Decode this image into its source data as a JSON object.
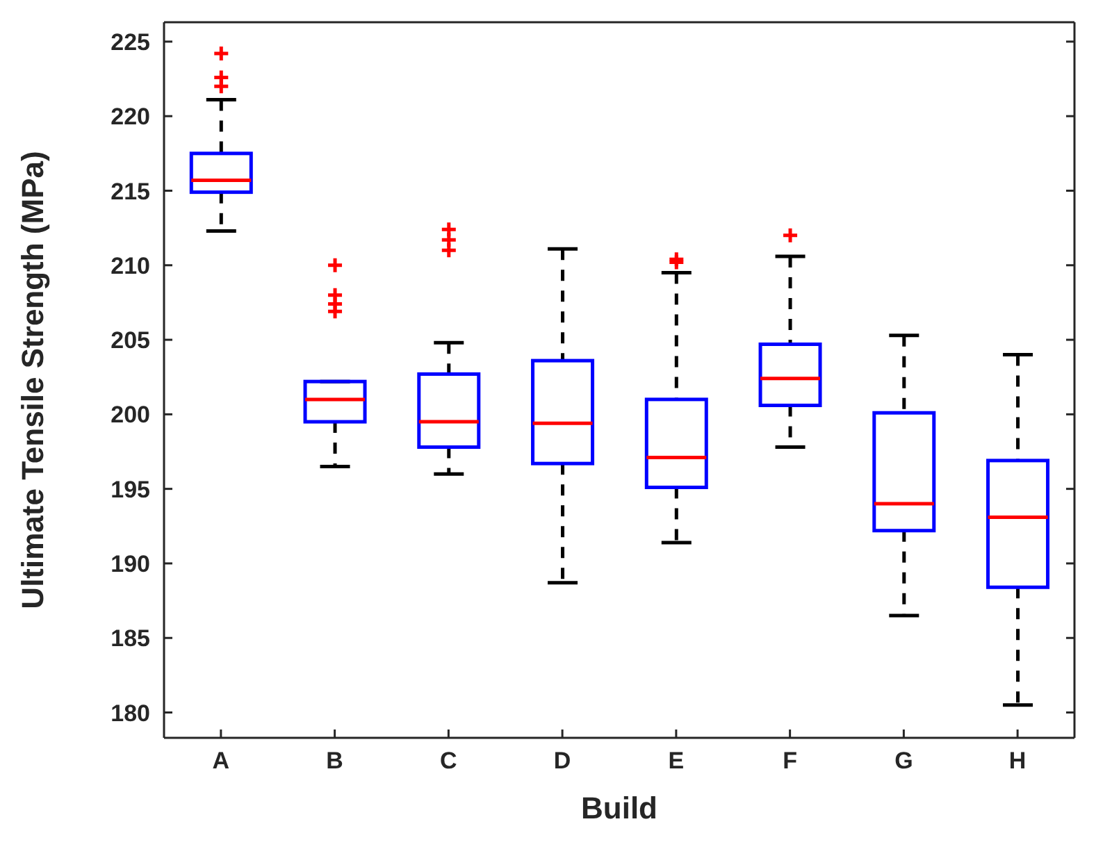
{
  "chart_data": {
    "type": "box",
    "xlabel": "Build",
    "ylabel": "Ultimate Tensile Strength (MPa)",
    "categories": [
      "A",
      "B",
      "C",
      "D",
      "E",
      "F",
      "G",
      "H"
    ],
    "boxes": [
      {
        "low": 212.3,
        "q1": 214.9,
        "median": 215.7,
        "q3": 217.5,
        "high": 221.1,
        "outliers": [
          224.2,
          222.6,
          222.0
        ]
      },
      {
        "low": 196.5,
        "q1": 199.5,
        "median": 201.0,
        "q3": 202.2,
        "high": 202.2,
        "outliers": [
          210.0,
          208.0,
          207.4,
          206.9
        ]
      },
      {
        "low": 196.0,
        "q1": 197.8,
        "median": 199.5,
        "q3": 202.7,
        "high": 204.8,
        "outliers": [
          212.4,
          211.7,
          211.0
        ]
      },
      {
        "low": 188.7,
        "q1": 196.7,
        "median": 199.4,
        "q3": 203.6,
        "high": 211.1
      },
      {
        "low": 191.4,
        "q1": 195.1,
        "median": 197.1,
        "q3": 201.0,
        "high": 209.5,
        "outliers": [
          210.4,
          210.2
        ]
      },
      {
        "low": 197.8,
        "q1": 200.6,
        "median": 202.4,
        "q3": 204.7,
        "high": 210.6,
        "outliers": [
          212.0
        ]
      },
      {
        "low": 186.5,
        "q1": 192.2,
        "median": 194.0,
        "q3": 200.1,
        "high": 205.3
      },
      {
        "low": 180.5,
        "q1": 188.4,
        "median": 193.1,
        "q3": 196.9,
        "high": 204.0
      }
    ],
    "color": "#0000ff",
    "ylim": [
      178.3,
      226.3
    ],
    "yticks": [
      180,
      185,
      190,
      195,
      200,
      205,
      210,
      215,
      220,
      225
    ],
    "grid": false,
    "legend": false
  }
}
